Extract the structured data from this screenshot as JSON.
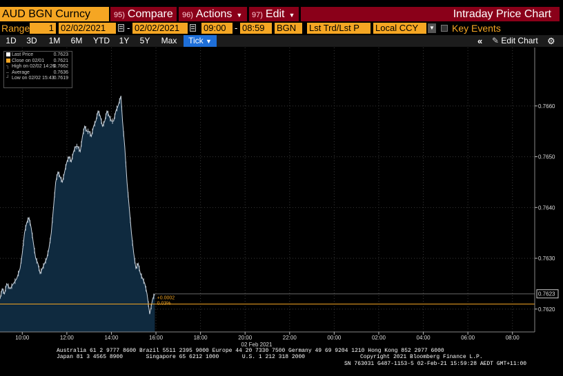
{
  "header": {
    "ticker": "AUD BGN Curncy",
    "menu": [
      {
        "num": "95)",
        "label": "Compare",
        "caret": false
      },
      {
        "num": "96)",
        "label": "Actions",
        "caret": true
      },
      {
        "num": "97)",
        "label": "Edit",
        "caret": true
      }
    ],
    "title": "Intraday Price Chart"
  },
  "toolbar": {
    "range_label": "Range",
    "range_value": "1",
    "start_date": "02/02/2021",
    "end_date": "02/02/2021",
    "start_time": "09:00",
    "end_time": "08:59",
    "source": "BGN",
    "field": "Lst Trd/Lst P",
    "currency": "Local CCY",
    "key_events": "Key Events"
  },
  "ranges": [
    "1D",
    "3D",
    "1M",
    "6M",
    "YTD",
    "1Y",
    "5Y",
    "Max"
  ],
  "tick": {
    "label": "Tick",
    "caret": "▼"
  },
  "chart_controls": {
    "collapse_icon": "double-chevron-left",
    "edit": "Edit Chart",
    "settings_icon": "gear"
  },
  "legend": [
    {
      "label": "Last Price",
      "value": "0.7623",
      "color": "#ffffff"
    },
    {
      "label": "Close on 02/01",
      "value": "0.7621",
      "color": "#f5a623"
    },
    {
      "label": "High on 02/02 14:26",
      "value": "0.7662",
      "color": "#aaaaaa"
    },
    {
      "label": "Average",
      "value": "0.7636",
      "color": "#aaaaaa"
    },
    {
      "label": "Low on 02/02 15:43",
      "value": "0.7619",
      "color": "#aaaaaa"
    }
  ],
  "annotations": {
    "last_price_tag": "0.7623",
    "change_abs": "+0.0002",
    "change_pct": "0.03%"
  },
  "chart_data": {
    "type": "area",
    "ylim": [
      0.76155,
      0.76715
    ],
    "yticks": [
      "0.7620",
      "0.7630",
      "0.7640",
      "0.7650",
      "0.7660"
    ],
    "ytick_values": [
      0.762,
      0.763,
      0.764,
      0.765,
      0.766
    ],
    "xticks": [
      "10:00",
      "12:00",
      "14:00",
      "16:00",
      "18:00",
      "20:00",
      "22:00",
      "00:00",
      "02:00",
      "04:00",
      "06:00",
      "08:00"
    ],
    "xtick_hours": [
      10,
      12,
      14,
      16,
      18,
      20,
      22,
      24,
      26,
      28,
      30,
      32
    ],
    "xlabel": "02 Feb 2021",
    "xlim_hours": [
      9,
      33
    ],
    "last_price": 0.7623,
    "prev_close": 0.7621,
    "x": [
      9.0,
      9.1,
      9.2,
      9.3,
      9.45,
      9.6,
      9.75,
      9.9,
      10.0,
      10.1,
      10.2,
      10.3,
      10.4,
      10.5,
      10.6,
      10.7,
      10.8,
      10.9,
      11.0,
      11.1,
      11.2,
      11.3,
      11.4,
      11.5,
      11.6,
      11.7,
      11.8,
      11.9,
      12.0,
      12.1,
      12.2,
      12.3,
      12.4,
      12.5,
      12.6,
      12.7,
      12.8,
      12.9,
      13.0,
      13.1,
      13.2,
      13.3,
      13.4,
      13.5,
      13.6,
      13.7,
      13.8,
      13.9,
      14.0,
      14.1,
      14.2,
      14.3,
      14.43,
      14.5,
      14.6,
      14.7,
      14.8,
      14.9,
      15.0,
      15.1,
      15.2,
      15.3,
      15.4,
      15.5,
      15.6,
      15.72,
      15.85,
      15.95
    ],
    "y": [
      0.7622,
      0.7624,
      0.7623,
      0.7625,
      0.7624,
      0.7625,
      0.7626,
      0.7628,
      0.7631,
      0.7635,
      0.7637,
      0.7638,
      0.7636,
      0.7633,
      0.763,
      0.7629,
      0.7627,
      0.7628,
      0.7629,
      0.763,
      0.7632,
      0.7635,
      0.764,
      0.7645,
      0.7647,
      0.7646,
      0.7645,
      0.7647,
      0.7649,
      0.765,
      0.7649,
      0.7651,
      0.7652,
      0.7652,
      0.7651,
      0.7654,
      0.7656,
      0.7655,
      0.7655,
      0.7654,
      0.7656,
      0.7657,
      0.7659,
      0.7658,
      0.7656,
      0.7657,
      0.7659,
      0.7658,
      0.7657,
      0.7657,
      0.7659,
      0.766,
      0.7662,
      0.7657,
      0.7652,
      0.7645,
      0.764,
      0.7635,
      0.7631,
      0.7628,
      0.7629,
      0.7627,
      0.7626,
      0.7625,
      0.7623,
      0.7619,
      0.7622,
      0.7623
    ]
  },
  "footer": {
    "line1": "Australia 61 2 9777 8600 Brazil 5511 2395 9000 Europe 44 20 7330 7500 Germany 49 69 9204 1210 Hong Kong 852 2977 6000",
    "line2a": "Japan 81 3 4565 8900       Singapore 65 6212 1000       U.S. 1 212 318 2000",
    "line2b": "Copyright 2021 Bloomberg Finance L.P.",
    "line3": "SN 763031 G487-1153-5 02-Feb-21 15:59:28 AEDT GMT+11:00"
  },
  "colors": {
    "accent": "#f5a623",
    "menubar": "#8a0019",
    "area": "#0f2a3f",
    "tick_active": "#1e6fd9"
  }
}
